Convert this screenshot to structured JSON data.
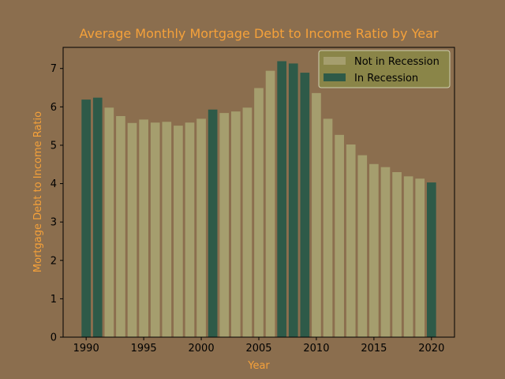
{
  "chart_data": {
    "type": "bar",
    "title": "Average Monthly Mortgage Debt to Income Ratio by Year",
    "xlabel": "Year",
    "ylabel": "Mortgage Debt to Income Ratio",
    "xlim": [
      1988,
      2022
    ],
    "ylim": [
      0,
      7.55
    ],
    "x_ticks": [
      1990,
      1995,
      2000,
      2005,
      2010,
      2015,
      2020
    ],
    "y_ticks": [
      0,
      1,
      2,
      3,
      4,
      5,
      6,
      7
    ],
    "legend_position": "top-right",
    "grid": false,
    "colors": {
      "background": "#8b6e4e",
      "plot_background": "#8b6e4e",
      "not_in_recession": "#a59e6e",
      "in_recession": "#2e5a48",
      "legend_background": "#8a8548",
      "title": "#f5a13a"
    },
    "series": [
      {
        "name": "Not in Recession",
        "key": "not_in_recession"
      },
      {
        "name": "In Recession",
        "key": "in_recession"
      }
    ],
    "x": [
      1990,
      1991,
      1992,
      1993,
      1994,
      1995,
      1996,
      1997,
      1998,
      1999,
      2000,
      2001,
      2002,
      2003,
      2004,
      2005,
      2006,
      2007,
      2008,
      2009,
      2010,
      2011,
      2012,
      2013,
      2014,
      2015,
      2016,
      2017,
      2018,
      2019,
      2020
    ],
    "values": [
      6.19,
      6.24,
      5.98,
      5.76,
      5.58,
      5.67,
      5.59,
      5.61,
      5.51,
      5.59,
      5.69,
      5.93,
      5.84,
      5.88,
      5.98,
      6.49,
      6.94,
      7.19,
      7.13,
      6.89,
      6.36,
      5.69,
      5.27,
      5.02,
      4.74,
      4.51,
      4.43,
      4.3,
      4.19,
      4.13,
      4.03
    ],
    "recession": [
      true,
      true,
      false,
      false,
      false,
      false,
      false,
      false,
      false,
      false,
      false,
      true,
      false,
      false,
      false,
      false,
      false,
      true,
      true,
      true,
      false,
      false,
      false,
      false,
      false,
      false,
      false,
      false,
      false,
      false,
      true
    ]
  }
}
